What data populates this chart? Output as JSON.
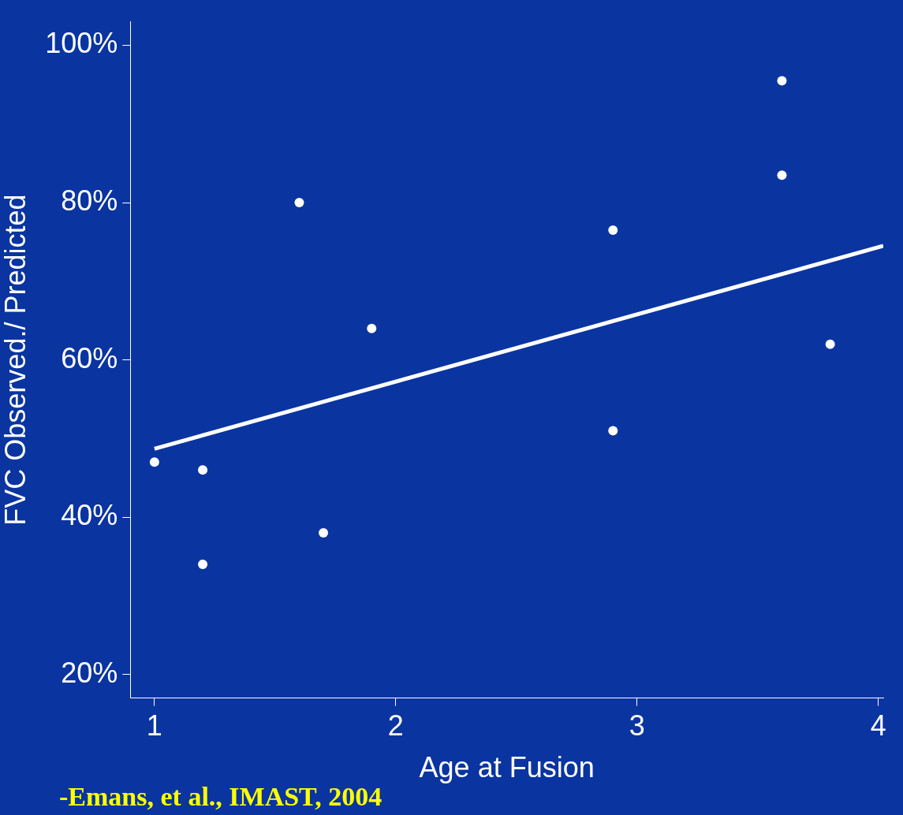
{
  "chart_data": {
    "type": "scatter",
    "xlabel": "Age at Fusion",
    "ylabel": "FVC Observed./ Predicted",
    "annotations": [
      "-Emans, et al., IMAST, 2004"
    ],
    "series": [
      {
        "color": "#ffffff",
        "marker": "circle",
        "x": [
          1.0,
          1.2,
          1.2,
          1.6,
          1.7,
          1.9,
          2.9,
          2.9,
          3.6,
          3.6,
          3.8
        ],
        "values": [
          47,
          46,
          34,
          80,
          38,
          64,
          76.5,
          51,
          95.5,
          83.5,
          62
        ]
      },
      {
        "type": "line",
        "color": "#ffffff",
        "line_style": "solid",
        "marker": "none",
        "x": [
          1.0,
          4.02
        ],
        "values": [
          48.7,
          74.5
        ]
      }
    ],
    "xlim": [
      0.9,
      4.02
    ],
    "ylim": [
      17,
      103
    ],
    "xticks": [
      1,
      2,
      3,
      4
    ],
    "yticks": [
      {
        "value": 20,
        "label": "20%"
      },
      {
        "value": 40,
        "label": "40%"
      },
      {
        "value": 60,
        "label": "60%"
      },
      {
        "value": 80,
        "label": "80%"
      },
      {
        "value": 100,
        "label": "100%"
      }
    ],
    "grid": false,
    "legend": false
  }
}
